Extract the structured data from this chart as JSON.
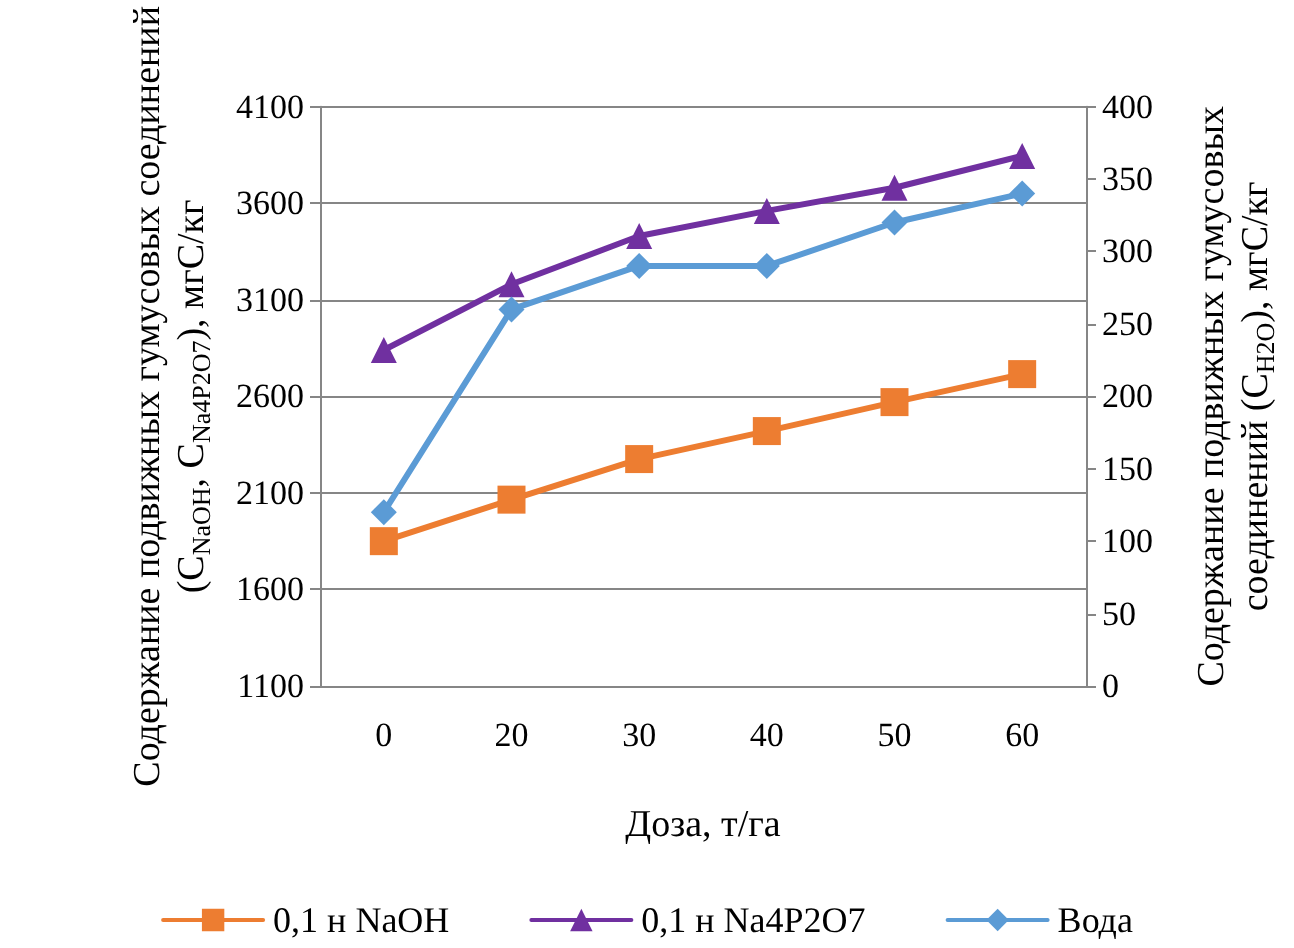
{
  "chart_data": {
    "type": "line",
    "xlabel": "Доза, т/га",
    "ylabel": "Содержание подвижных гумусовых соединений (C$_{NaOH}$, C$_{Na4P2O7}$), мгС/кг",
    "y2label": "Содержание подвижных гумусовых соединений (C$_{H2O}$), мгС/кг",
    "categories": [
      "0",
      "20",
      "30",
      "40",
      "50",
      "60"
    ],
    "series": [
      {
        "name": "0,1 н NaOH",
        "color": "#ed7d31",
        "marker": "square",
        "values": [
          1850,
          2065,
          2275,
          2420,
          2570,
          2715
        ]
      },
      {
        "name": "0,1 н Na4P2O7",
        "color": "#7030a0",
        "marker": "triangle",
        "values": [
          2840,
          3180,
          3430,
          3560,
          3680,
          3845
        ]
      },
      {
        "name": "Вода",
        "color": "#5b9bd5",
        "marker": "diamond",
        "axis": "y2",
        "values": [
          120,
          260,
          290,
          290,
          320,
          340
        ]
      }
    ],
    "ylim": [
      1100,
      4100
    ],
    "yticks": [
      1100,
      1600,
      2100,
      2600,
      3100,
      3600,
      4100
    ],
    "y2lim": [
      0,
      400
    ],
    "y2ticks": [
      0,
      50,
      100,
      150,
      200,
      250,
      300,
      350,
      400
    ],
    "grid": "y",
    "legend": "bottom",
    "line_style": "solid"
  }
}
